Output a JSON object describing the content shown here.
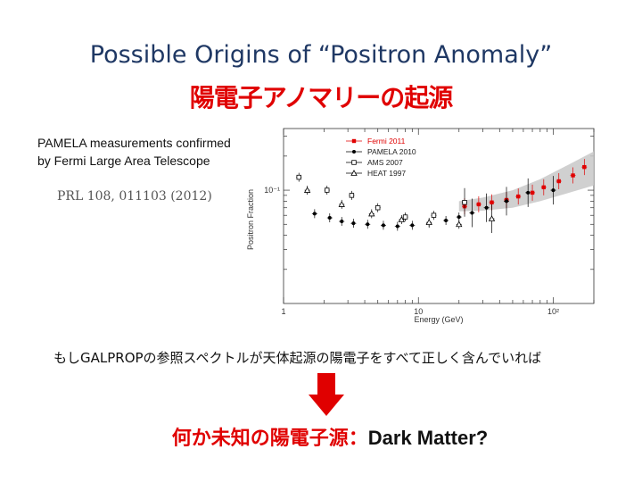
{
  "title_en": "Possible Origins of “Positron Anomaly”",
  "title_jp": "陽電子アノマリーの起源",
  "caption_line1": "PAMELA measurements confirmed",
  "caption_line2": "by Fermi Large Area Telescope",
  "reference": "PRL 108, 011103 (2012)",
  "body_text": "もしGALPROPの参照スペクトルが天体起源の陽電子をすべて正しく含んでいれば",
  "conclusion_jp": "何か未知の陽電子源：",
  "conclusion_en": "Dark Matter?",
  "colors": {
    "title_en": "#1f3864",
    "title_jp": "#e00000",
    "arrow": "#e00000",
    "fermi": "#e00000",
    "band": "#c8c8c8"
  },
  "chart_data": {
    "type": "scatter",
    "xlabel": "Energy (GeV)",
    "ylabel": "Positron Fraction",
    "x_scale": "log",
    "y_scale": "log",
    "xlim": [
      1,
      200
    ],
    "ylim": [
      0.01,
      0.35
    ],
    "x_tick_labels": [
      "1",
      "10",
      "10²"
    ],
    "y_tick_labels": [
      "10⁻¹"
    ],
    "legend_position": "top-center",
    "series": [
      {
        "name": "Fermi 2011",
        "marker": "square-filled",
        "color": "#e00000",
        "x": [
          22,
          28,
          35,
          45,
          55,
          70,
          85,
          110,
          140,
          170
        ],
        "y": [
          0.072,
          0.075,
          0.078,
          0.082,
          0.088,
          0.095,
          0.106,
          0.12,
          0.135,
          0.16
        ]
      },
      {
        "name": "PAMELA 2010",
        "marker": "circle-filled",
        "color": "#000000",
        "x": [
          1.7,
          2.2,
          2.7,
          3.3,
          4.2,
          5.5,
          7.0,
          9.0,
          12,
          16,
          20,
          25,
          32,
          45,
          65,
          100
        ],
        "y": [
          0.062,
          0.057,
          0.053,
          0.051,
          0.05,
          0.049,
          0.048,
          0.049,
          0.051,
          0.054,
          0.058,
          0.063,
          0.07,
          0.08,
          0.095,
          0.1
        ]
      },
      {
        "name": "AMS 2007",
        "marker": "square-open",
        "color": "#000000",
        "x": [
          1.3,
          2.1,
          3.2,
          5.0,
          8.0,
          13,
          22
        ],
        "y": [
          0.13,
          0.1,
          0.09,
          0.07,
          0.058,
          0.06,
          0.078
        ]
      },
      {
        "name": "HEAT 1997",
        "marker": "triangle-open",
        "color": "#000000",
        "x": [
          1.5,
          2.7,
          4.5,
          7.5,
          12,
          20,
          35
        ],
        "y": [
          0.1,
          0.075,
          0.062,
          0.055,
          0.052,
          0.05,
          0.056
        ]
      }
    ],
    "band": {
      "color": "#c8c8c8",
      "x": [
        20,
        30,
        50,
        80,
        120,
        200
      ],
      "y_low": [
        0.065,
        0.066,
        0.07,
        0.08,
        0.092,
        0.11
      ],
      "y_high": [
        0.08,
        0.086,
        0.1,
        0.125,
        0.16,
        0.22
      ]
    }
  }
}
